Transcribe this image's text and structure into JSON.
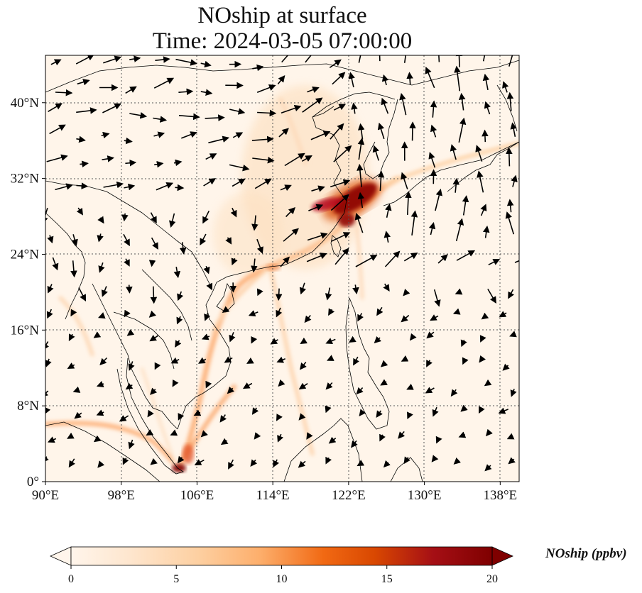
{
  "title": {
    "line1": "NOship at surface",
    "line2": "Time: 2024-03-05 07:00:00"
  },
  "map": {
    "lon_range": [
      90,
      140
    ],
    "lat_range": [
      0,
      45
    ],
    "lon_ticks": [
      "90°E",
      "98°E",
      "106°E",
      "114°E",
      "122°E",
      "130°E",
      "138°E"
    ],
    "lat_ticks": [
      "0°",
      "8°N",
      "16°N",
      "24°N",
      "32°N",
      "40°N"
    ],
    "lon_tick_values": [
      90,
      98,
      106,
      114,
      122,
      130,
      138
    ],
    "lat_tick_values": [
      0,
      8,
      16,
      24,
      32,
      40
    ],
    "gridlines": true,
    "background_color": "#fff5ea",
    "coastline_color": "#000000",
    "vector_color": "#000000"
  },
  "colorbar": {
    "label": "NOship (ppbv)",
    "min": 0,
    "max": 20,
    "ticks": [
      "0",
      "5",
      "10",
      "15",
      "20"
    ],
    "tick_values": [
      0,
      5,
      10,
      15,
      20
    ],
    "extend": "both",
    "colors": [
      "#fff5eb",
      "#fee6ce",
      "#fdd0a2",
      "#fdae6b",
      "#f16913",
      "#d94801",
      "#a50f15",
      "#7f0000"
    ]
  }
}
